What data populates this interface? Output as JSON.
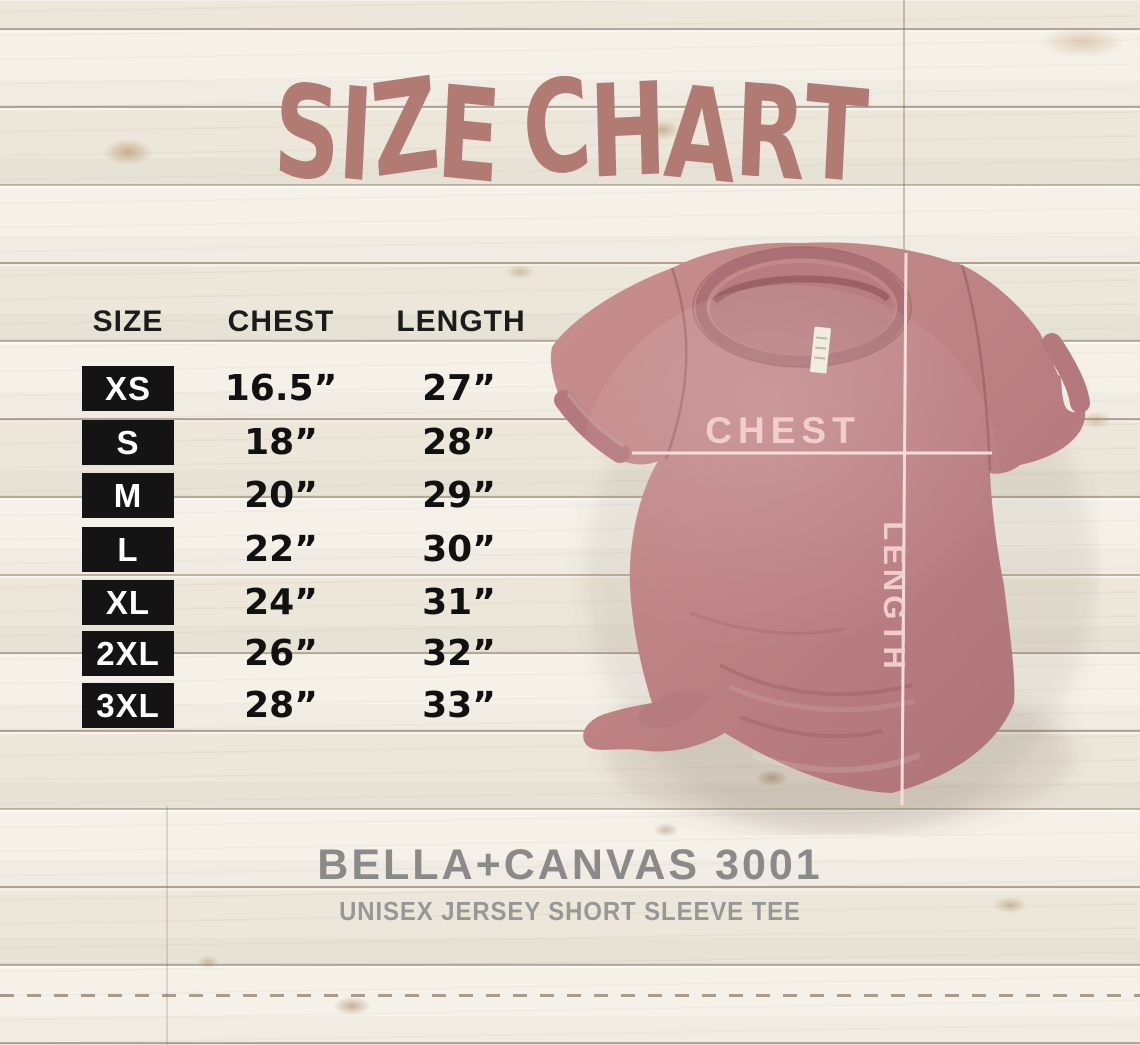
{
  "title": "SIZE CHART",
  "table": {
    "headers": [
      "SIZE",
      "CHEST",
      "LENGTH"
    ],
    "rows": [
      {
        "size": "XS",
        "chest": "16.5”",
        "length": "27”"
      },
      {
        "size": "S",
        "chest": "18”",
        "length": "28”"
      },
      {
        "size": "M",
        "chest": "20”",
        "length": "29”"
      },
      {
        "size": "L",
        "chest": "22”",
        "length": "30”"
      },
      {
        "size": "XL",
        "chest": "24”",
        "length": "31”"
      },
      {
        "size": "2XL",
        "chest": "26”",
        "length": "32”"
      },
      {
        "size": "3XL",
        "chest": "28”",
        "length": "33”"
      }
    ]
  },
  "shirt": {
    "chest_label": "CHEST",
    "length_label": "LENGTH"
  },
  "footer": {
    "brand": "BELLA+CANVAS 3001",
    "subtitle": "UNISEX JERSEY SHORT SLEEVE TEE"
  },
  "colors": {
    "title_text": "#b17b74",
    "shirt_fabric": "#c18689",
    "measure_line": "#f6d6d2",
    "size_box": "#141414",
    "size_box_text": "#ffffff",
    "table_text": "#111111",
    "brand_text": "#8a8a8a",
    "subtitle_text": "#979797",
    "wood_base": "#f1ede3"
  },
  "chart_data": {
    "type": "table",
    "title": "SIZE CHART",
    "columns": [
      "SIZE",
      "CHEST",
      "LENGTH"
    ],
    "rows": [
      [
        "XS",
        "16.5”",
        "27”"
      ],
      [
        "S",
        "18”",
        "28”"
      ],
      [
        "M",
        "20”",
        "29”"
      ],
      [
        "L",
        "22”",
        "30”"
      ],
      [
        "XL",
        "24”",
        "31”"
      ],
      [
        "2XL",
        "26”",
        "32”"
      ],
      [
        "3XL",
        "28”",
        "33”"
      ]
    ],
    "units": "inches",
    "product": "BELLA+CANVAS 3001 UNISEX JERSEY SHORT SLEEVE TEE",
    "measure_annotations": [
      "CHEST",
      "LENGTH"
    ]
  }
}
